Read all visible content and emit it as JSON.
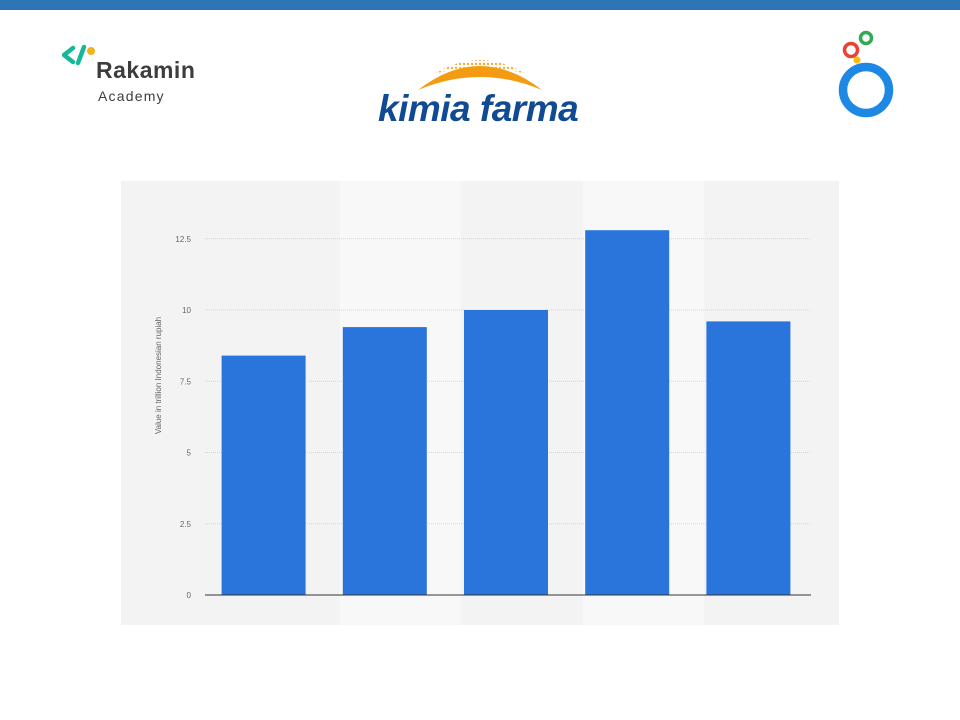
{
  "header": {
    "accent_color": "#2e75b6"
  },
  "logos": {
    "rakamin": {
      "name": "Rakamin",
      "sub": "Academy",
      "icon": "rakamin-code-icon"
    },
    "kimia_farma": {
      "name": "kimia farma",
      "icon": "sunrise-arc-icon"
    },
    "looker_studio": {
      "icon": "looker-studio-icon"
    }
  },
  "chart_data": {
    "type": "bar",
    "categories": [
      "",
      "",
      "",
      "",
      ""
    ],
    "values": [
      8.4,
      9.4,
      10.0,
      12.8,
      9.6
    ],
    "ylabel": "Value in trillion Indonesian rupiah",
    "xlabel": "",
    "ylim": [
      0,
      14
    ],
    "yticks": [
      0,
      2.5,
      5,
      7.5,
      10,
      12.5
    ],
    "ytick_labels": [
      "0",
      "2.5",
      "5",
      "7.5",
      "10",
      "12.5"
    ],
    "bar_color": "#2a75db",
    "grid": true,
    "legend": "none"
  }
}
